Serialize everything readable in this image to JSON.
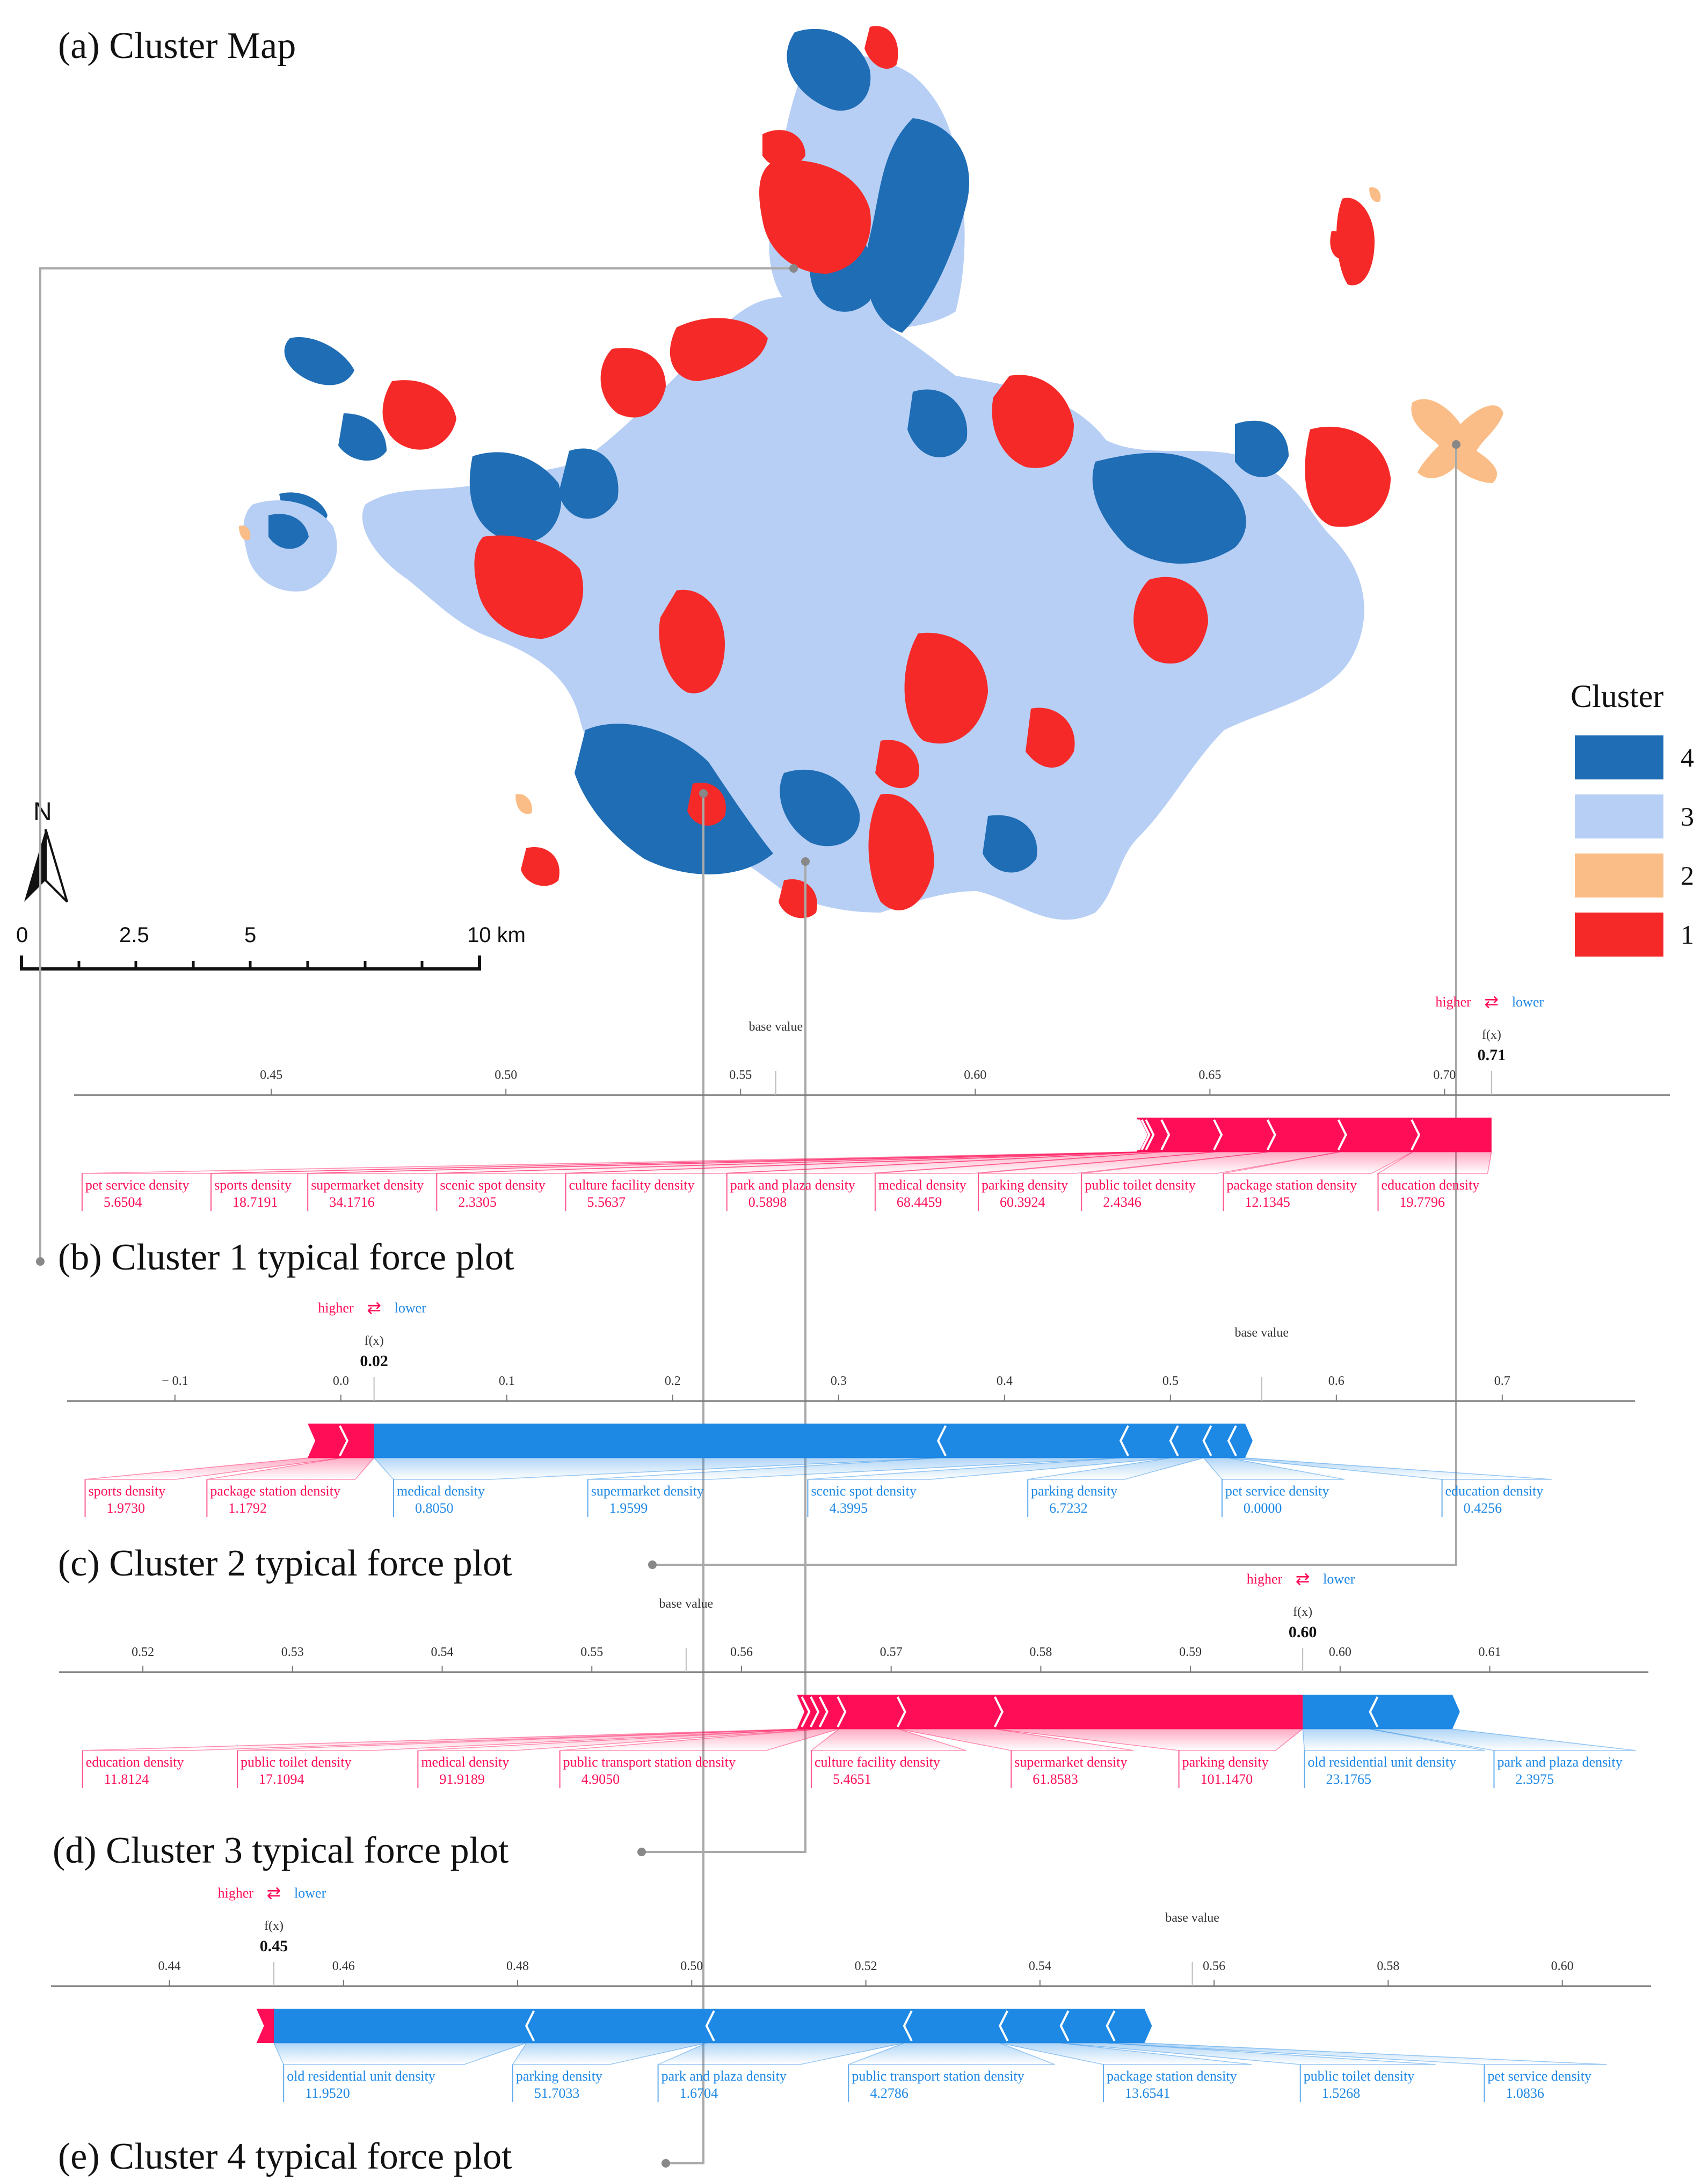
{
  "colors": {
    "cluster4": "#1f6db5",
    "cluster3": "#b7cff5",
    "cluster2": "#fbbd87",
    "cluster1": "#f52a28",
    "higher": "#ff0d57",
    "lower": "#1e88e5"
  },
  "map": {
    "title": "(a) Cluster Map",
    "legend_title": "Cluster",
    "legend": [
      {
        "label": "4",
        "color": "#1f6db5"
      },
      {
        "label": "3",
        "color": "#b7cff5"
      },
      {
        "label": "2",
        "color": "#fbbd87"
      },
      {
        "label": "1",
        "color": "#f52a28"
      }
    ],
    "north_label": "N",
    "scale": {
      "labels": [
        "0",
        "2.5",
        "5",
        "10 km"
      ]
    }
  },
  "plot_text": {
    "higher": "higher",
    "lower": "lower",
    "arrow": "⇄",
    "fx": "f(x)",
    "base_value": "base value"
  },
  "chart_data": [
    {
      "type": "force",
      "title": "(b) Cluster 1 typical force plot",
      "xlim": [
        0.408,
        0.748
      ],
      "ticks": [
        0.45,
        0.5,
        0.55,
        0.6,
        0.65,
        0.7
      ],
      "tick_labels": [
        "0.45",
        "0.50",
        "0.55",
        "0.60",
        "0.65",
        "0.70"
      ],
      "base_value": 0.5575,
      "fx": 0.71,
      "fx_label": "0.71",
      "positive": [
        {
          "name": "pet service density",
          "value": "5.6504",
          "shap": 0.0002
        },
        {
          "name": "sports density",
          "value": "18.7191",
          "shap": 0.0002
        },
        {
          "name": "supermarket density",
          "value": "34.1716",
          "shap": 0.0003
        },
        {
          "name": "scenic spot density",
          "value": "2.3305",
          "shap": 0.0006
        },
        {
          "name": "culture facility density",
          "value": "5.5637",
          "shap": 0.0009
        },
        {
          "name": "park and plaza density",
          "value": "0.5898",
          "shap": 0.0033
        },
        {
          "name": "medical density",
          "value": "68.4459",
          "shap": 0.0112
        },
        {
          "name": "parking density",
          "value": "60.3924",
          "shap": 0.0114
        },
        {
          "name": "public toilet density",
          "value": "2.4346",
          "shap": 0.0151
        },
        {
          "name": "package station density",
          "value": "12.1345",
          "shap": 0.0156
        },
        {
          "name": "education density",
          "value": "19.7796",
          "shap": 0.0168
        }
      ],
      "negative": []
    },
    {
      "type": "force",
      "title": "(c) Cluster 2 typical force plot",
      "xlim": [
        -0.165,
        0.78
      ],
      "ticks": [
        -0.1,
        0.0,
        0.1,
        0.2,
        0.3,
        0.4,
        0.5,
        0.6,
        0.7
      ],
      "tick_labels": [
        "− 0.1",
        "0.0",
        "0.1",
        "0.2",
        "0.3",
        "0.4",
        "0.5",
        "0.6",
        "0.7"
      ],
      "base_value": 0.555,
      "fx": 0.02,
      "fx_label": "0.02",
      "positive": [
        {
          "name": "sports density",
          "value": "1.9730",
          "shap": 0.02
        },
        {
          "name": "package station density",
          "value": "1.1792",
          "shap": 0.02
        }
      ],
      "negative": [
        {
          "name": "medical density",
          "value": "0.8050",
          "shap": 0.34
        },
        {
          "name": "supermarket density",
          "value": "1.9599",
          "shap": 0.11
        },
        {
          "name": "scenic spot density",
          "value": "4.3995",
          "shap": 0.03
        },
        {
          "name": "parking density",
          "value": "6.7232",
          "shap": 0.02
        },
        {
          "name": "pet service density",
          "value": "0.0000",
          "shap": 0.015
        },
        {
          "name": "education density",
          "value": "0.4256",
          "shap": 0.01
        }
      ]
    },
    {
      "type": "force",
      "title": "(d) Cluster 3 typical force plot",
      "xlim": [
        0.5144,
        0.6206
      ],
      "ticks": [
        0.52,
        0.53,
        0.54,
        0.55,
        0.56,
        0.57,
        0.58,
        0.59,
        0.6,
        0.61
      ],
      "tick_labels": [
        "0.52",
        "0.53",
        "0.54",
        "0.55",
        "0.56",
        "0.57",
        "0.58",
        "0.59",
        "0.60",
        "0.61"
      ],
      "base_value": 0.5563,
      "fx": 0.5975,
      "fx_label": "0.60",
      "positive": [
        {
          "name": "education density",
          "value": "11.8124",
          "shap": 0.0004
        },
        {
          "name": "public toilet density",
          "value": "17.1094",
          "shap": 0.0006
        },
        {
          "name": "medical density",
          "value": "91.9189",
          "shap": 0.0006
        },
        {
          "name": "public transport station density",
          "value": "4.9050",
          "shap": 0.0012
        },
        {
          "name": "culture facility density",
          "value": "5.4651",
          "shap": 0.004
        },
        {
          "name": "supermarket density",
          "value": "61.8583",
          "shap": 0.0065
        },
        {
          "name": "parking density",
          "value": "101.1470",
          "shap": 0.0205
        }
      ],
      "negative": [
        {
          "name": "old residential unit density",
          "value": "23.1765",
          "shap": 0.0045
        },
        {
          "name": "park and plaza density",
          "value": "2.3975",
          "shap": 0.0055
        }
      ]
    },
    {
      "type": "force",
      "title": "(e) Cluster 4 typical force plot",
      "xlim": [
        0.4264,
        0.6102
      ],
      "ticks": [
        0.44,
        0.46,
        0.48,
        0.5,
        0.52,
        0.54,
        0.56,
        0.58,
        0.6
      ],
      "tick_labels": [
        "0.44",
        "0.46",
        "0.48",
        "0.50",
        "0.52",
        "0.54",
        "0.56",
        "0.58",
        "0.60"
      ],
      "base_value": 0.5575,
      "fx": 0.452,
      "fx_label": "0.45",
      "positive": [
        {
          "name": "",
          "value": "",
          "shap": 0.002
        }
      ],
      "negative": [
        {
          "name": "old residential unit density",
          "value": "11.9520",
          "shap": 0.029
        },
        {
          "name": "parking density",
          "value": "51.7033",
          "shap": 0.0207
        },
        {
          "name": "park and plaza density",
          "value": "1.6704",
          "shap": 0.0227
        },
        {
          "name": "public transport station density",
          "value": "4.2786",
          "shap": 0.011
        },
        {
          "name": "package station density",
          "value": "13.6541",
          "shap": 0.007
        },
        {
          "name": "public toilet density",
          "value": "1.5268",
          "shap": 0.0053
        },
        {
          "name": "pet service density",
          "value": "1.0836",
          "shap": 0.0043
        }
      ]
    }
  ]
}
